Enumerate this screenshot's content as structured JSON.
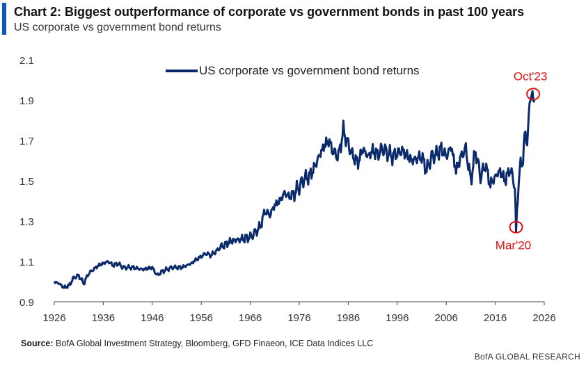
{
  "header": {
    "title": "Chart 2: Biggest outperformance of corporate vs government bonds in past 100 years",
    "subtitle": "US corporate vs government bond returns"
  },
  "footer": {
    "source_label": "Source:",
    "source_text": "BofA Global Investment Strategy, Bloomberg, GFD Finaeon, ICE Data Indices LLC",
    "brand": "BofA GLOBAL RESEARCH"
  },
  "colors": {
    "accent": "#0a56c8",
    "series": "#0b2a6b",
    "annotation": "#e01010"
  },
  "chart_data": {
    "type": "line",
    "title": "Chart 2: Biggest outperformance of corporate vs government bonds in past 100 years",
    "subtitle": "US corporate vs government bond returns",
    "xlabel": "",
    "ylabel": "",
    "xlim": [
      1926,
      2026
    ],
    "ylim": [
      0.9,
      2.1
    ],
    "xticks": [
      "1926",
      "1936",
      "1946",
      "1956",
      "1966",
      "1976",
      "1986",
      "1996",
      "2006",
      "2016",
      "2026"
    ],
    "yticks": [
      "2.1",
      "1.9",
      "1.7",
      "1.5",
      "1.3",
      "1.1",
      "0.9"
    ],
    "grid": false,
    "legend_position": "top-center",
    "series": [
      {
        "name": "US corporate vs government bond returns",
        "x": [
          1926,
          1927,
          1928,
          1929,
          1930,
          1931,
          1932,
          1933,
          1934,
          1935,
          1936,
          1937,
          1938,
          1939,
          1940,
          1942,
          1944,
          1946,
          1947,
          1948,
          1950,
          1952,
          1954,
          1955,
          1957,
          1958,
          1960,
          1962,
          1964,
          1966,
          1968,
          1969,
          1970,
          1971,
          1972,
          1973,
          1974,
          1975,
          1976,
          1977,
          1978,
          1979,
          1980,
          1981,
          1982,
          1983,
          1984,
          1985,
          1986,
          1987,
          1988,
          1989,
          1990,
          1991,
          1992,
          1993,
          1995,
          1997,
          1999,
          2001,
          2002,
          2003,
          2004,
          2005,
          2006,
          2007,
          2008,
          2009,
          2010,
          2011,
          2012,
          2013,
          2014,
          2015,
          2016,
          2017,
          2018,
          2019,
          2020,
          2020.25,
          2020.6,
          2021,
          2021.5,
          2022,
          2022.5,
          2023,
          2023.4,
          2023.8,
          2024
        ],
        "values": [
          1.0,
          0.99,
          0.97,
          0.98,
          1.02,
          1.03,
          0.99,
          1.04,
          1.06,
          1.08,
          1.09,
          1.1,
          1.08,
          1.09,
          1.07,
          1.07,
          1.06,
          1.07,
          1.03,
          1.05,
          1.07,
          1.07,
          1.09,
          1.11,
          1.14,
          1.13,
          1.17,
          1.2,
          1.21,
          1.22,
          1.27,
          1.35,
          1.33,
          1.38,
          1.4,
          1.44,
          1.42,
          1.44,
          1.47,
          1.51,
          1.52,
          1.56,
          1.62,
          1.67,
          1.7,
          1.64,
          1.62,
          1.75,
          1.68,
          1.62,
          1.59,
          1.66,
          1.62,
          1.65,
          1.63,
          1.66,
          1.62,
          1.65,
          1.6,
          1.62,
          1.55,
          1.62,
          1.63,
          1.66,
          1.62,
          1.67,
          1.55,
          1.62,
          1.66,
          1.5,
          1.65,
          1.52,
          1.58,
          1.48,
          1.52,
          1.55,
          1.5,
          1.56,
          1.48,
          1.25,
          1.42,
          1.56,
          1.58,
          1.72,
          1.7,
          1.86,
          1.94,
          1.88,
          1.9
        ]
      }
    ],
    "annotations": [
      {
        "label": "Oct'23",
        "x": 2023.75,
        "y": 1.93,
        "position": "above"
      },
      {
        "label": "Mar'20",
        "x": 2020.25,
        "y": 1.27,
        "position": "below"
      }
    ]
  }
}
